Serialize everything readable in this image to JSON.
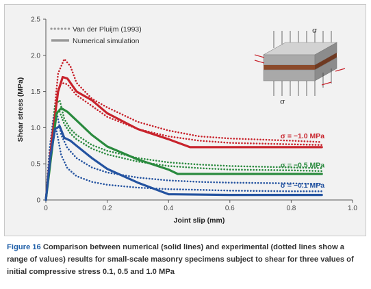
{
  "caption": {
    "label": "Figure 16",
    "text": "Comparison between numerical (solid lines) and experimental (dotted lines show a range of values) results for small-scale masonry specimens subject to shear for three values of initial compressive stress 0.1, 0.5 and 1.0 MPa"
  },
  "inset": {
    "sigma_top": "σ",
    "sigma_bottom": "σ"
  },
  "chart_data": {
    "type": "line",
    "xlabel": "Joint slip (mm)",
    "ylabel": "Shear stress (MPa)",
    "xlim": [
      0,
      1.0
    ],
    "ylim": [
      0,
      2.5
    ],
    "xticks": [
      "0",
      "0.2",
      "0.4",
      "0.6",
      "0.8",
      "1.0"
    ],
    "yticks": [
      "0",
      "0.5",
      "1.0",
      "1.5",
      "2.0",
      "2.5"
    ],
    "grid": false,
    "legend": {
      "position": "top-left",
      "entries": [
        {
          "label": "Van der Pluijm (1993)",
          "style": "dotted"
        },
        {
          "label": "Numerical simulation",
          "style": "solid"
        }
      ]
    },
    "colors": {
      "s10": "#c8232c",
      "s05": "#2a8a3e",
      "s01": "#2453a0",
      "legend": "#999999"
    },
    "series": [
      {
        "name": "σ = −1.0 MPa",
        "key": "s10",
        "kind": "numerical",
        "x": [
          0,
          0.02,
          0.04,
          0.055,
          0.07,
          0.1,
          0.15,
          0.2,
          0.3,
          0.4,
          0.47,
          0.6,
          0.8,
          0.9
        ],
        "y": [
          0,
          0.85,
          1.5,
          1.7,
          1.68,
          1.5,
          1.38,
          1.2,
          0.98,
          0.84,
          0.73,
          0.73,
          0.73,
          0.73
        ]
      },
      {
        "name": "σ = −1.0 MPa",
        "key": "s10",
        "kind": "exp_upper",
        "x": [
          0,
          0.02,
          0.04,
          0.06,
          0.08,
          0.1,
          0.15,
          0.2,
          0.3,
          0.4,
          0.5,
          0.6,
          0.8,
          0.9
        ],
        "y": [
          0,
          0.9,
          1.75,
          1.95,
          1.85,
          1.62,
          1.4,
          1.28,
          1.08,
          0.96,
          0.88,
          0.85,
          0.82,
          0.8
        ]
      },
      {
        "name": "σ = −1.0 MPa",
        "key": "s10",
        "kind": "exp_lower",
        "x": [
          0,
          0.02,
          0.035,
          0.05,
          0.07,
          0.1,
          0.15,
          0.2,
          0.3,
          0.4,
          0.5,
          0.6,
          0.8,
          0.9
        ],
        "y": [
          0,
          0.8,
          1.45,
          1.62,
          1.6,
          1.45,
          1.3,
          1.15,
          0.98,
          0.88,
          0.82,
          0.79,
          0.77,
          0.76
        ]
      },
      {
        "name": "σ = −0.5 MPa",
        "key": "s05",
        "kind": "numerical",
        "x": [
          0,
          0.02,
          0.035,
          0.05,
          0.07,
          0.1,
          0.15,
          0.2,
          0.3,
          0.4,
          0.43,
          0.6,
          0.8,
          0.9
        ],
        "y": [
          0,
          0.7,
          1.2,
          1.27,
          1.22,
          1.1,
          0.9,
          0.74,
          0.56,
          0.42,
          0.36,
          0.36,
          0.36,
          0.36
        ]
      },
      {
        "name": "σ = −0.5 MPa",
        "key": "s05",
        "kind": "exp_upper",
        "x": [
          0,
          0.015,
          0.03,
          0.045,
          0.06,
          0.08,
          0.1,
          0.15,
          0.2,
          0.3,
          0.4,
          0.5,
          0.6,
          0.8,
          0.9
        ],
        "y": [
          0,
          0.75,
          1.32,
          1.38,
          1.12,
          0.98,
          0.9,
          0.76,
          0.68,
          0.58,
          0.52,
          0.49,
          0.47,
          0.45,
          0.44
        ]
      },
      {
        "name": "σ = −0.5 MPa",
        "key": "s05",
        "kind": "exp_lower",
        "x": [
          0,
          0.015,
          0.03,
          0.045,
          0.06,
          0.08,
          0.1,
          0.15,
          0.2,
          0.3,
          0.4,
          0.5,
          0.6,
          0.8,
          0.9
        ],
        "y": [
          0,
          0.7,
          1.18,
          1.22,
          1.05,
          0.92,
          0.84,
          0.71,
          0.63,
          0.53,
          0.47,
          0.44,
          0.42,
          0.41,
          0.4
        ]
      },
      {
        "name": "σ = −0.1 MPa",
        "key": "s01",
        "kind": "numerical",
        "x": [
          0,
          0.015,
          0.03,
          0.045,
          0.06,
          0.08,
          0.1,
          0.15,
          0.2,
          0.3,
          0.4,
          0.6,
          0.8,
          0.9
        ],
        "y": [
          0,
          0.6,
          0.98,
          1.02,
          0.86,
          0.82,
          0.75,
          0.58,
          0.43,
          0.24,
          0.08,
          0.07,
          0.07,
          0.07
        ]
      },
      {
        "name": "σ = −0.1 MPa",
        "key": "s01",
        "kind": "exp_upper",
        "x": [
          0,
          0.012,
          0.025,
          0.035,
          0.05,
          0.07,
          0.1,
          0.15,
          0.2,
          0.3,
          0.4,
          0.5,
          0.6,
          0.8,
          0.9
        ],
        "y": [
          0,
          0.7,
          1.15,
          1.22,
          0.9,
          0.72,
          0.58,
          0.45,
          0.38,
          0.31,
          0.27,
          0.25,
          0.24,
          0.23,
          0.22
        ]
      },
      {
        "name": "σ = −0.1 MPa",
        "key": "s01",
        "kind": "exp_lower",
        "x": [
          0,
          0.012,
          0.025,
          0.035,
          0.05,
          0.07,
          0.1,
          0.15,
          0.2,
          0.3,
          0.4,
          0.5,
          0.6,
          0.8,
          0.9
        ],
        "y": [
          0,
          0.6,
          0.92,
          0.95,
          0.62,
          0.44,
          0.33,
          0.25,
          0.21,
          0.17,
          0.15,
          0.14,
          0.13,
          0.12,
          0.12
        ]
      }
    ],
    "labels": [
      {
        "text": "σ = −1.0 MPa",
        "key": "s10"
      },
      {
        "text": "σ = −0.5 MPa",
        "key": "s05"
      },
      {
        "text": "σ = −0.1 MPa",
        "key": "s01"
      }
    ]
  }
}
